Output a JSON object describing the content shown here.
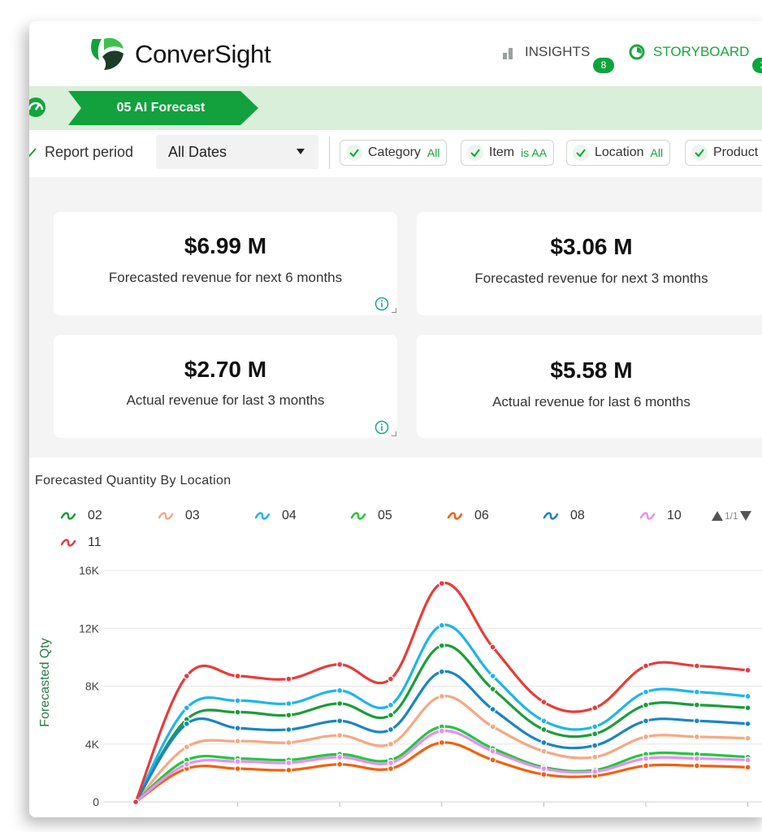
{
  "brand": {
    "name": "ConverSight"
  },
  "nav": {
    "insights": {
      "label": "INSIGHTS",
      "count": "8",
      "icon": "bar-chart-icon"
    },
    "storyboard": {
      "label": "STORYBOARD",
      "count": "2",
      "icon": "storyboard-icon"
    }
  },
  "breadcrumb": {
    "current": "05 AI Forecast",
    "icon": "dashboard-gauge-icon"
  },
  "filters": {
    "report_period_label": "Report period",
    "report_period_value": "All Dates",
    "chips": [
      {
        "key": "Category",
        "value": "All"
      },
      {
        "key": "Item",
        "value": "is AA"
      },
      {
        "key": "Location",
        "value": "All"
      },
      {
        "key": "Product",
        "value": ""
      }
    ]
  },
  "kpis": [
    {
      "value": "$6.99 M",
      "caption": "Forecasted revenue for next 6 months"
    },
    {
      "value": "$3.06 M",
      "caption": "Forecasted revenue for next 3 months"
    },
    {
      "value": "$2.70 M",
      "caption": "Actual revenue for last 3 months"
    },
    {
      "value": "$5.58 M",
      "caption": "Actual revenue for last 6 months"
    }
  ],
  "chart": {
    "title": "Forecasted Quantity By Location",
    "pager": "1/1",
    "colors": {
      "accent": "#10a33e",
      "breadcrumb_bg": "#d9efd9",
      "grid": "#e6e6e6"
    }
  },
  "chart_data": {
    "type": "line",
    "title": "Forecasted Quantity By Location",
    "xlabel": "",
    "ylabel": "Forecasted Qty",
    "ylim": [
      0,
      16000
    ],
    "yticks": [
      "0",
      "4K",
      "8K",
      "12K",
      "16K"
    ],
    "grid": true,
    "legend_position": "top",
    "x": [
      1,
      2,
      3,
      4,
      5,
      6,
      7,
      8,
      9,
      10,
      11,
      12,
      13
    ],
    "series": [
      {
        "name": "02",
        "color": "#1a9e3a",
        "values": [
          0,
          5700,
          6200,
          6000,
          6800,
          6000,
          10800,
          7800,
          5000,
          4700,
          6700,
          6700,
          6500
        ]
      },
      {
        "name": "03",
        "color": "#f6a883",
        "values": [
          0,
          3800,
          4200,
          4100,
          4600,
          4000,
          7300,
          5200,
          3500,
          3100,
          4500,
          4500,
          4400
        ]
      },
      {
        "name": "04",
        "color": "#1fb5ea",
        "values": [
          0,
          6500,
          7000,
          6800,
          7700,
          6700,
          12200,
          8700,
          5600,
          5200,
          7600,
          7600,
          7300
        ]
      },
      {
        "name": "05",
        "color": "#25c640",
        "values": [
          0,
          2900,
          3000,
          2900,
          3300,
          2900,
          5200,
          3700,
          2400,
          2200,
          3300,
          3300,
          3100
        ]
      },
      {
        "name": "06",
        "color": "#f2600d",
        "values": [
          0,
          2300,
          2300,
          2200,
          2600,
          2300,
          4100,
          2900,
          1900,
          1800,
          2500,
          2500,
          2400
        ]
      },
      {
        "name": "08",
        "color": "#1b84c4",
        "values": [
          0,
          5400,
          5100,
          5000,
          5600,
          5000,
          9000,
          6400,
          4100,
          3900,
          5600,
          5600,
          5400
        ]
      },
      {
        "name": "10",
        "color": "#e78ef5",
        "values": [
          0,
          2600,
          2800,
          2700,
          3100,
          2700,
          4900,
          3500,
          2300,
          2100,
          3000,
          3000,
          2900
        ]
      },
      {
        "name": "11",
        "color": "#e63c3c",
        "values": [
          0,
          8700,
          8700,
          8500,
          9500,
          8500,
          15100,
          10700,
          6900,
          6500,
          9400,
          9400,
          9100
        ]
      }
    ]
  }
}
